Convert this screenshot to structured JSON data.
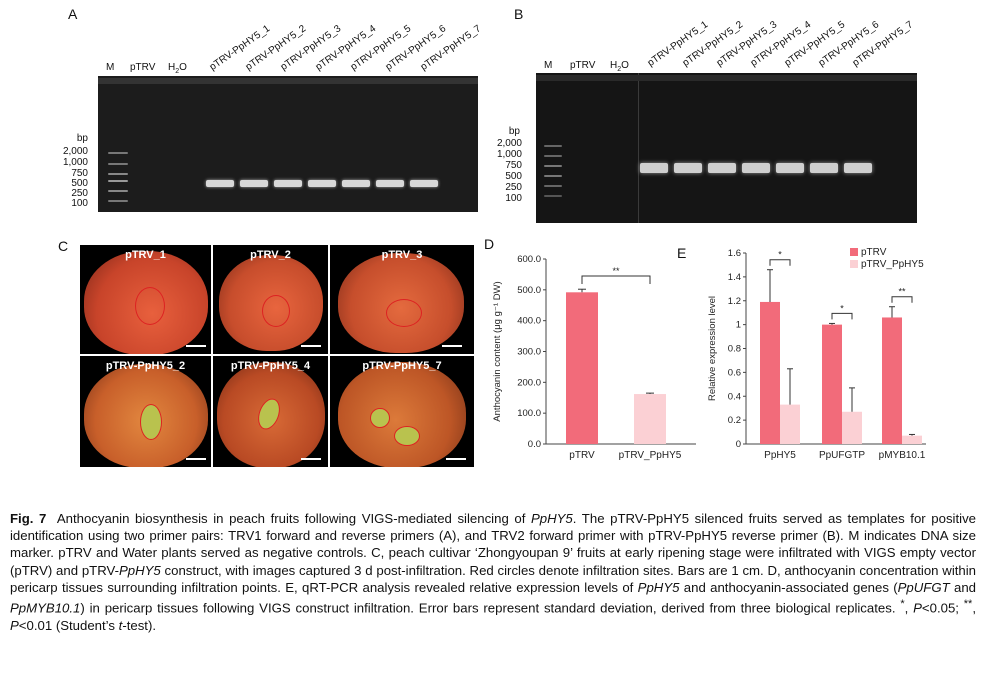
{
  "panel_a": {
    "letter": "A",
    "lanes": [
      "M",
      "pTRV",
      "H2O_base",
      "pTRV-PpHY5_1",
      "pTRV-PpHY5_2",
      "pTRV-PpHY5_3",
      "pTRV-PpHY5_4",
      "pTRV-PpHY5_5",
      "pTRV-PpHY5_6",
      "pTRV-PpHY5_7"
    ],
    "bp_title": "bp",
    "bp_labels": [
      "2,000",
      "1,000",
      "750",
      "500",
      "250",
      "100"
    ]
  },
  "panel_b": {
    "letter": "B",
    "bp_title": "bp",
    "bp_labels": [
      "2,000",
      "1,000",
      "750",
      "500",
      "250",
      "100"
    ]
  },
  "lane_labels": {
    "m": "M",
    "ptrv": "pTRV",
    "h": "H",
    "h_sub": "2",
    "o": "O",
    "silenced": [
      "pTRV-PpHY5_1",
      "pTRV-PpHY5_2",
      "pTRV-PpHY5_3",
      "pTRV-PpHY5_4",
      "pTRV-PpHY5_5",
      "pTRV-PpHY5_6",
      "pTRV-PpHY5_7"
    ]
  },
  "panel_c": {
    "letter": "C",
    "photos": [
      "pTRV_1",
      "pTRV_2",
      "pTRV_3",
      "pTRV-PpHY5_2",
      "pTRV-PpHY5_4",
      "pTRV-PpHY5_7"
    ]
  },
  "panel_d": {
    "letter": "D",
    "chart_data": {
      "type": "bar",
      "categories": [
        "pTRV",
        "pTRV_PpHY5"
      ],
      "values": [
        492,
        162
      ],
      "errors": [
        10,
        3
      ],
      "ylabel": "Anthocyanin content (μg g⁻¹ DW)",
      "ylim": [
        0,
        600
      ],
      "yticks": [
        "0.0",
        "100.0",
        "200.0",
        "300.0",
        "400.0",
        "500.0",
        "600.0"
      ],
      "significance": "**",
      "colors": [
        "#f26b7a",
        "#fbd0d4"
      ]
    }
  },
  "panel_e": {
    "letter": "E",
    "chart_data": {
      "type": "bar",
      "categories": [
        "PpHY5",
        "PpUFGTP",
        "pMYB10.1"
      ],
      "series": [
        {
          "name": "pTRV",
          "values": [
            1.19,
            1.0,
            1.06
          ],
          "errors": [
            0.27,
            0.01,
            0.09
          ],
          "color": "#f26b7a"
        },
        {
          "name": "pTRV_PpHY5",
          "values": [
            0.33,
            0.27,
            0.07
          ],
          "errors": [
            0.3,
            0.2,
            0.01
          ],
          "color": "#fbd0d4"
        }
      ],
      "ylabel": "Relative expression level",
      "ylim": [
        0,
        1.6
      ],
      "yticks": [
        "0",
        "0.2",
        "0.4",
        "0.6",
        "0.8",
        "1",
        "1.2",
        "1.4",
        "1.6"
      ],
      "significance": [
        "*",
        "*",
        "**"
      ],
      "legend": "top-right"
    }
  },
  "caption": {
    "fig_label": "Fig. 7",
    "s1": "Anthocyanin biosynthesis in peach fruits following VIGS-mediated silencing of ",
    "gene1": "PpHY5",
    "s2": ".  The pTRV-PpHY5 silenced fruits served as templates for positive identification using two primer pairs: TRV1 forward and reverse primers (A), and TRV2 forward primer with pTRV-PpHY5 reverse primer (B).  M indicates DNA size marker.  pTRV and Water plants served as negative controls.  C, peach cultivar ‘Zhongyoupan 9’ fruits at early ripening stage were infiltrated with VIGS empty vector (pTRV) and pTRV-",
    "gene2": "PpHY5",
    "s3": " construct, with images captured 3 d post-infiltration.  Red circles denote infiltration sites.  Bars are 1 cm.  D, anthocyanin concentration within pericarp tissues surrounding infiltration points.  E, qRT-PCR analysis revealed relative expression levels of ",
    "gene3": "PpHY5",
    "s4": " and anthocyanin-associated genes (",
    "gene4": "PpUFGT",
    "s5": " and ",
    "gene5": "PpMYB10.1",
    "s6": ") in pericarp tissues following VIGS construct infiltration.  Error bars represent standard deviation, derived from three biological replicates.  ",
    "star1": "*",
    "s7": ", ",
    "p1": "P",
    "s8": "<0.05; ",
    "star2": "**",
    "s9": ", ",
    "p2": "P",
    "s10": "<0.01 (Student’s ",
    "t": "t",
    "s11": "-test)."
  }
}
